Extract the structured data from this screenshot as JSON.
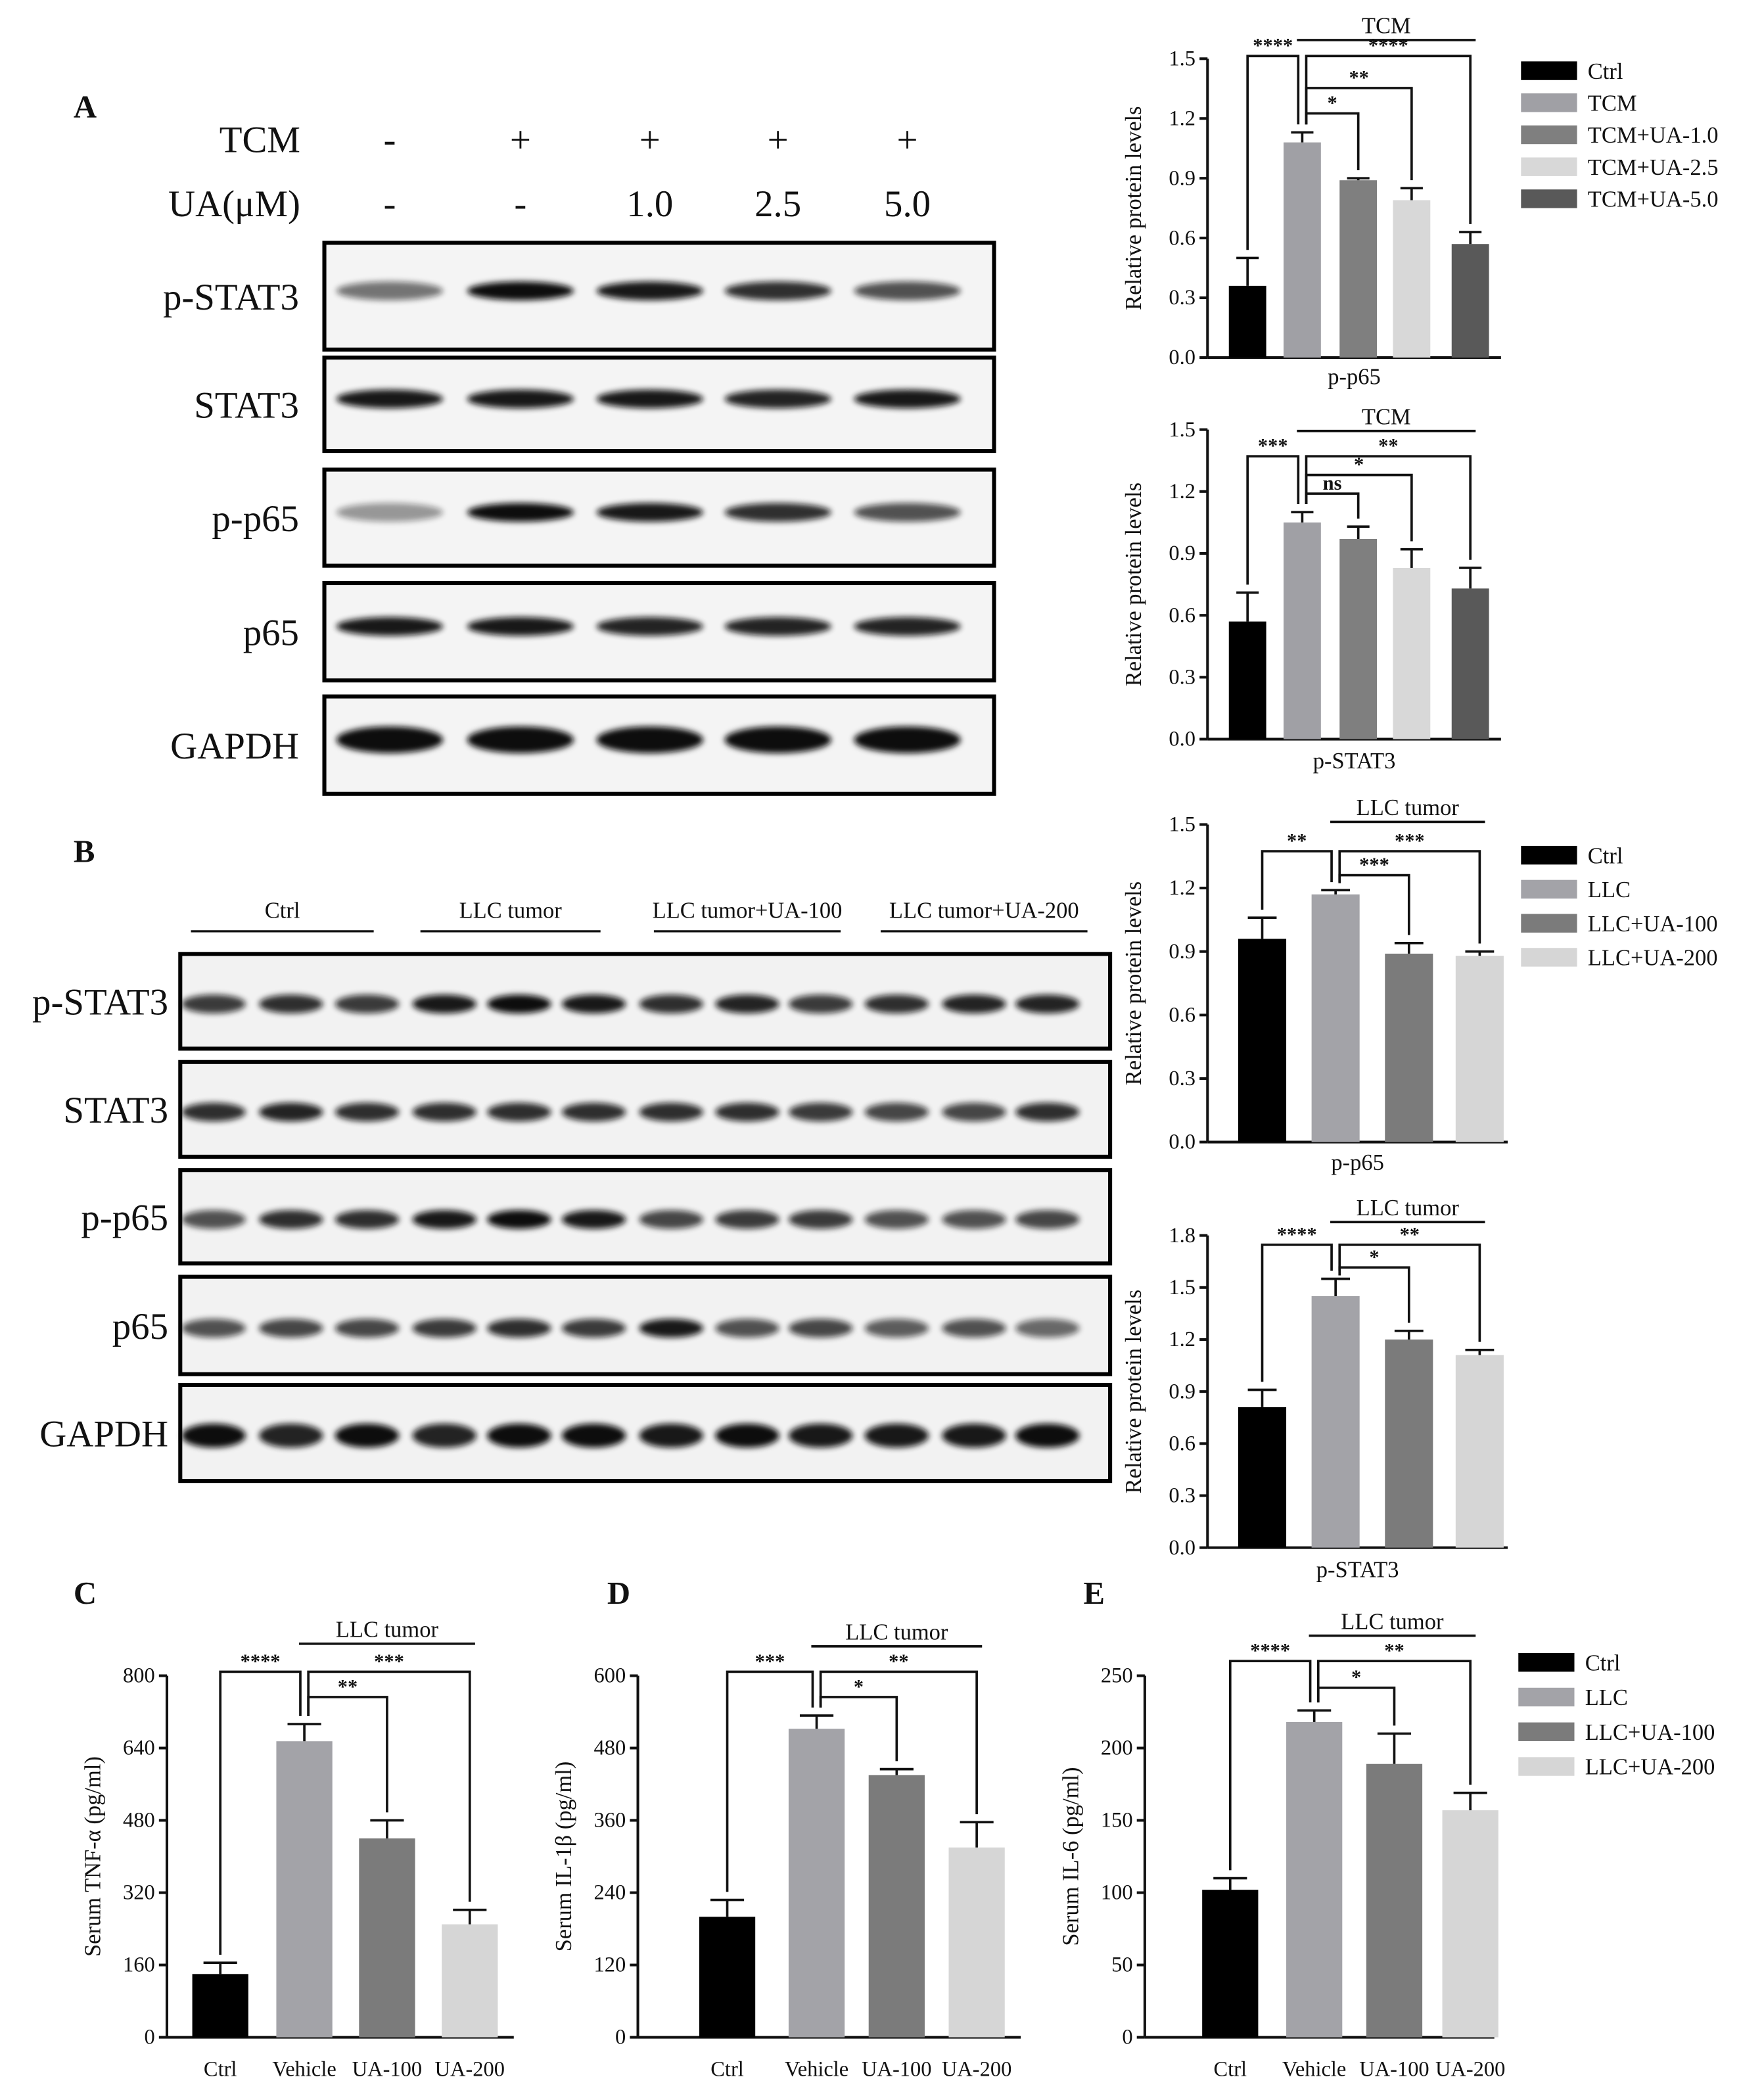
{
  "blots": {
    "A": {
      "panel": "A",
      "conditions": [
        {
          "label": "TCM",
          "values": [
            "-",
            "+",
            "+",
            "+",
            "+"
          ]
        },
        {
          "label": "UA(μM)",
          "values": [
            "-",
            "-",
            "1.0",
            "2.5",
            "5.0"
          ]
        }
      ],
      "proteins": [
        "p-STAT3",
        "STAT3",
        "p-p65",
        "p65",
        "GAPDH"
      ]
    },
    "B": {
      "panel": "B",
      "groups": [
        "Ctrl",
        "LLC tumor",
        "LLC tumor+UA-100",
        "LLC tumor+UA-200"
      ],
      "proteins": [
        "p-STAT3",
        "STAT3",
        "p-p65",
        "p65",
        "GAPDH"
      ]
    }
  },
  "chart_data": [
    {
      "type": "bar",
      "y_label": "Relative protein levels",
      "x_label": "p-p65",
      "values": [
        0.36,
        1.08,
        0.89,
        0.79,
        0.57
      ],
      "errors": [
        0.14,
        0.05,
        0.01,
        0.06,
        0.06
      ],
      "colors": [
        "#000000",
        "#a0a0a5",
        "#7f7f7f",
        "#d8d8d8",
        "#595959"
      ],
      "legend": [
        "Ctrl",
        "TCM",
        "TCM+UA-1.0",
        "TCM+UA-2.5",
        "TCM+UA-5.0"
      ],
      "ylim": [
        0,
        1.5
      ],
      "yticks": [
        {
          "value": 0,
          "label": "0.0"
        },
        0.3,
        0.6,
        0.9,
        1.2,
        1.5
      ],
      "group_label": "TCM",
      "significance": [
        "****",
        "****",
        "**",
        "*"
      ]
    },
    {
      "type": "bar",
      "y_label": "Relative protein levels",
      "x_label": "p-STAT3",
      "values": [
        0.57,
        1.05,
        0.97,
        0.83,
        0.73
      ],
      "errors": [
        0.14,
        0.05,
        0.06,
        0.09,
        0.1
      ],
      "colors": [
        "#000000",
        "#a0a0a5",
        "#7f7f7f",
        "#d8d8d8",
        "#595959"
      ],
      "ylim": [
        0,
        1.5
      ],
      "yticks": [
        {
          "value": 0,
          "label": "0.0"
        },
        0.3,
        0.6,
        0.9,
        1.2,
        1.5
      ],
      "group_label": "TCM",
      "significance": [
        "***",
        "**",
        "*",
        "ns"
      ]
    },
    {
      "type": "bar",
      "y_label": "Relative protein levels",
      "x_label": "p-p65",
      "values": [
        0.96,
        1.17,
        0.89,
        0.88
      ],
      "errors": [
        0.1,
        0.02,
        0.05,
        0.02
      ],
      "colors": [
        "#000000",
        "#a3a3a8",
        "#7b7b7b",
        "#d6d6d6"
      ],
      "legend": [
        "Ctrl",
        "LLC",
        "LLC+UA-100",
        "LLC+UA-200"
      ],
      "ylim": [
        0,
        1.5
      ],
      "yticks": [
        {
          "value": 0,
          "label": "0.0"
        },
        0.3,
        0.6,
        0.9,
        1.2,
        1.5
      ],
      "group_label": "LLC tumor",
      "significance": [
        "**",
        "***",
        "***"
      ]
    },
    {
      "type": "bar",
      "y_label": "Relative protein levels",
      "x_label": "p-STAT3",
      "values": [
        0.81,
        1.45,
        1.2,
        1.11
      ],
      "errors": [
        0.1,
        0.1,
        0.05,
        0.03
      ],
      "colors": [
        "#000000",
        "#a3a3a8",
        "#7b7b7b",
        "#d6d6d6"
      ],
      "ylim": [
        0,
        1.8
      ],
      "yticks": [
        {
          "value": 0,
          "label": "0.0"
        },
        0.3,
        0.6,
        0.9,
        1.2,
        1.5,
        1.8
      ],
      "group_label": "LLC tumor",
      "significance": [
        "****",
        "**",
        "*"
      ]
    },
    {
      "type": "bar",
      "panel": "C",
      "y_label": "Serum TNF-α (pg/ml)",
      "categories": [
        "Ctrl",
        "Vehicle",
        "UA-100",
        "UA-200"
      ],
      "values": [
        140,
        655,
        440,
        250
      ],
      "errors": [
        25,
        38,
        40,
        32
      ],
      "colors": [
        "#000000",
        "#a3a3a8",
        "#7b7b7b",
        "#d6d6d6"
      ],
      "ylim": [
        0,
        800
      ],
      "yticks": [
        0,
        160,
        320,
        480,
        640,
        800
      ],
      "group_label": "LLC tumor",
      "significance": [
        "****",
        "***",
        "**"
      ]
    },
    {
      "type": "bar",
      "panel": "D",
      "y_label": "Serum IL-1β (pg/ml)",
      "categories": [
        "Ctrl",
        "Vehicle",
        "UA-100",
        "UA-200"
      ],
      "values": [
        200,
        512,
        435,
        315
      ],
      "errors": [
        28,
        22,
        10,
        42
      ],
      "colors": [
        "#000000",
        "#a3a3a8",
        "#7b7b7b",
        "#d6d6d6"
      ],
      "ylim": [
        0,
        600
      ],
      "yticks": [
        0,
        120,
        240,
        360,
        480,
        600
      ],
      "group_label": "LLC tumor",
      "significance": [
        "***",
        "**",
        "*"
      ]
    },
    {
      "type": "bar",
      "panel": "E",
      "y_label": "Serum IL-6 (pg/ml)",
      "categories": [
        "Ctrl",
        "Vehicle",
        "UA-100",
        "UA-200"
      ],
      "values": [
        102,
        218,
        189,
        157
      ],
      "errors": [
        8,
        8,
        21,
        12
      ],
      "colors": [
        "#000000",
        "#a3a3a8",
        "#7b7b7b",
        "#d6d6d6"
      ],
      "legend": [
        "Ctrl",
        "LLC",
        "LLC+UA-100",
        "LLC+UA-200"
      ],
      "ylim": [
        0,
        250
      ],
      "yticks": [
        0,
        50,
        100,
        150,
        200,
        250
      ],
      "group_label": "LLC tumor",
      "significance": [
        "****",
        "**",
        "*"
      ]
    }
  ]
}
